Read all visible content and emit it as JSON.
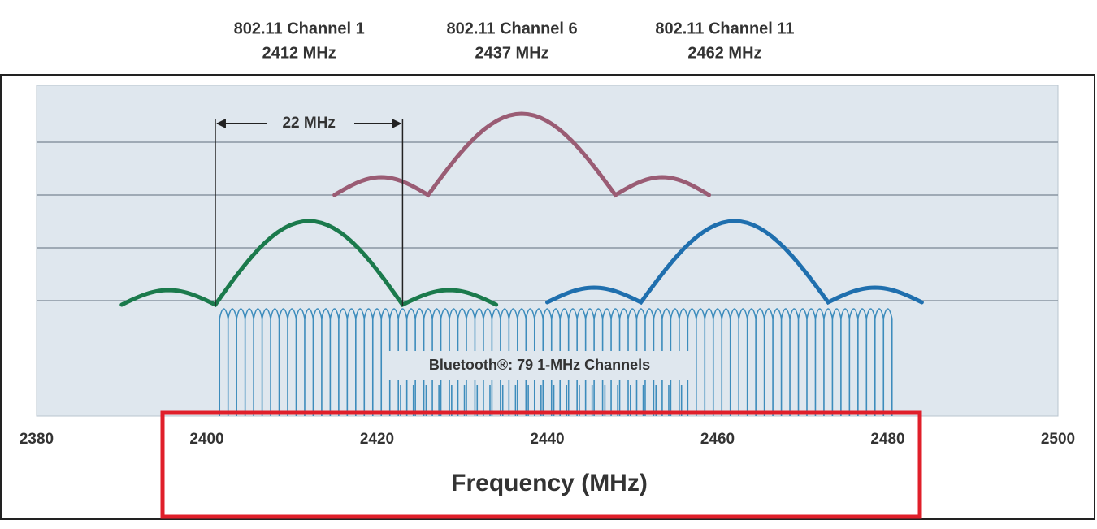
{
  "channels": [
    {
      "name": "802.11 Channel 1",
      "frequency": "2412 MHz",
      "color": "#1b7a4c"
    },
    {
      "name": "802.11 Channel 6",
      "frequency": "2437 MHz",
      "color": "#9a5c74"
    },
    {
      "name": "802.11 Channel 11",
      "frequency": "2462 MHz",
      "color": "#1f6fae"
    }
  ],
  "x_axis": {
    "ticks": [
      2380,
      2400,
      2420,
      2440,
      2460,
      2480,
      2500
    ],
    "title": "Frequency (MHz)"
  },
  "annotations": {
    "bandwidth": "22 MHz",
    "bluetooth": "Bluetooth®: 79 1-MHz Channels"
  }
}
